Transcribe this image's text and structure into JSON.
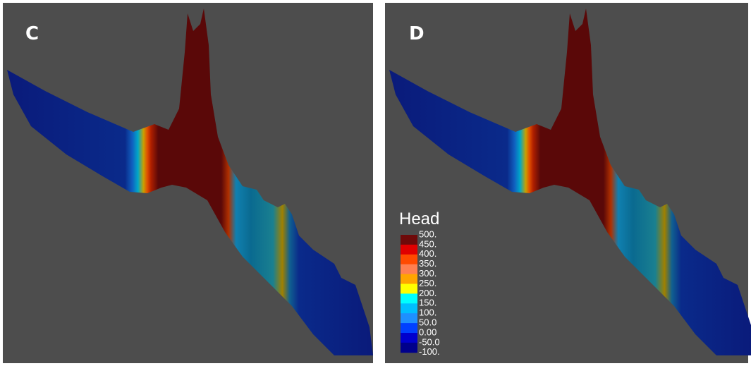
{
  "panels": [
    {
      "label": "C"
    },
    {
      "label": "D"
    }
  ],
  "legend": {
    "title": "Head",
    "labels": [
      "500.",
      "450.",
      "400.",
      "350.",
      "300.",
      "250.",
      "200.",
      "150.",
      "100.",
      "50.0",
      "0.00",
      "-50.0",
      "-100."
    ],
    "colors": [
      "#6e0a0a",
      "#e00000",
      "#ff4a00",
      "#ff7f50",
      "#ffa500",
      "#ffff00",
      "#00ffff",
      "#00bfff",
      "#1e90ff",
      "#0040ff",
      "#0000cd",
      "#00008b"
    ]
  }
}
